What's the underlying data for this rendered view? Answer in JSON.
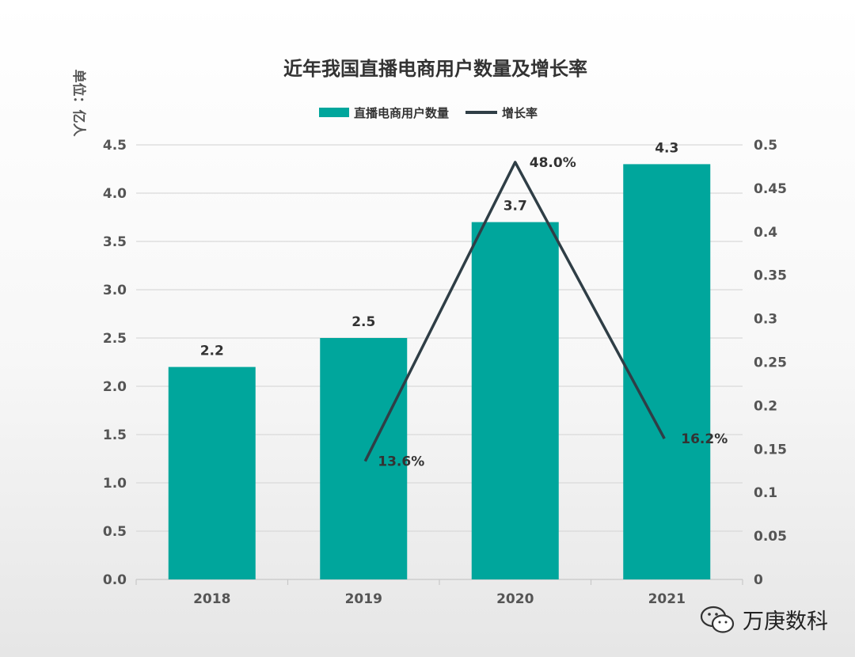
{
  "chart_data": {
    "type": "bar",
    "title": "近年我国直播电商用户数量及增长率",
    "unit_label": "单位：亿人",
    "categories": [
      "2018",
      "2019",
      "2020",
      "2021"
    ],
    "series": [
      {
        "name": "直播电商用户数量",
        "type": "bar",
        "axis": "left",
        "color": "#00a69c",
        "values": [
          2.2,
          2.5,
          3.7,
          4.3
        ],
        "labels": [
          "2.2",
          "2.5",
          "3.7",
          "4.3"
        ]
      },
      {
        "name": "增长率",
        "type": "line",
        "axis": "right",
        "color": "#2f3e46",
        "values": [
          null,
          0.136,
          0.48,
          0.162
        ],
        "labels": [
          "",
          "13.6%",
          "48.0%",
          "16.2%"
        ]
      }
    ],
    "y_left": {
      "min": 0,
      "max": 4.5,
      "ticks": [
        "0.0",
        "0.5",
        "1.0",
        "1.5",
        "2.0",
        "2.5",
        "3.0",
        "3.5",
        "4.0",
        "4.5"
      ]
    },
    "y_right": {
      "min": 0,
      "max": 0.5,
      "ticks": [
        "0",
        "0.05",
        "0.1",
        "0.15",
        "0.2",
        "0.25",
        "0.3",
        "0.35",
        "0.4",
        "0.45",
        "0.5"
      ]
    },
    "grid": true,
    "legend_position": "top"
  },
  "watermark": {
    "text": "万庚数科",
    "icon": "wechat-icon"
  }
}
